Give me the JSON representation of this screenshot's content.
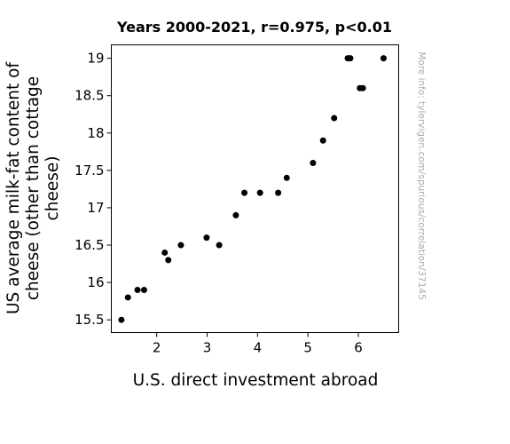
{
  "chart_data": {
    "type": "scatter",
    "title": "Years 2000-2021, r=0.975, p<0.01",
    "xlabel": "U.S. direct investment abroad",
    "ylabel_lines": [
      "US average milk-fat content of",
      "cheese (other than cottage",
      "cheese)"
    ],
    "side_note": "More info: tylervigen.com/spurious/correlation/37145",
    "xlim": [
      1.1,
      6.8
    ],
    "ylim": [
      15.33,
      19.18
    ],
    "xticks": [
      2,
      3,
      4,
      5,
      6
    ],
    "xtick_labels": [
      "2",
      "3",
      "4",
      "5",
      "6"
    ],
    "yticks": [
      15.5,
      16,
      16.5,
      17,
      17.5,
      18,
      18.5,
      19
    ],
    "ytick_labels": [
      "15.5",
      "16",
      "16.5",
      "17",
      "17.5",
      "18",
      "18.5",
      "19"
    ],
    "marker_color": "#000000",
    "grid": false,
    "points": [
      {
        "x": 1.3,
        "y": 15.5
      },
      {
        "x": 1.43,
        "y": 15.8
      },
      {
        "x": 1.62,
        "y": 15.9
      },
      {
        "x": 1.75,
        "y": 15.9
      },
      {
        "x": 2.16,
        "y": 16.4
      },
      {
        "x": 2.23,
        "y": 16.3
      },
      {
        "x": 2.48,
        "y": 16.5
      },
      {
        "x": 2.99,
        "y": 16.6
      },
      {
        "x": 3.24,
        "y": 16.5
      },
      {
        "x": 3.57,
        "y": 16.9
      },
      {
        "x": 3.74,
        "y": 17.2
      },
      {
        "x": 4.05,
        "y": 17.2
      },
      {
        "x": 4.41,
        "y": 17.2
      },
      {
        "x": 4.58,
        "y": 17.4
      },
      {
        "x": 5.1,
        "y": 17.6
      },
      {
        "x": 5.3,
        "y": 17.9
      },
      {
        "x": 5.52,
        "y": 18.2
      },
      {
        "x": 5.79,
        "y": 19.0
      },
      {
        "x": 5.84,
        "y": 19.0
      },
      {
        "x": 6.03,
        "y": 18.6
      },
      {
        "x": 6.09,
        "y": 18.6
      },
      {
        "x": 6.5,
        "y": 19.0
      }
    ]
  }
}
